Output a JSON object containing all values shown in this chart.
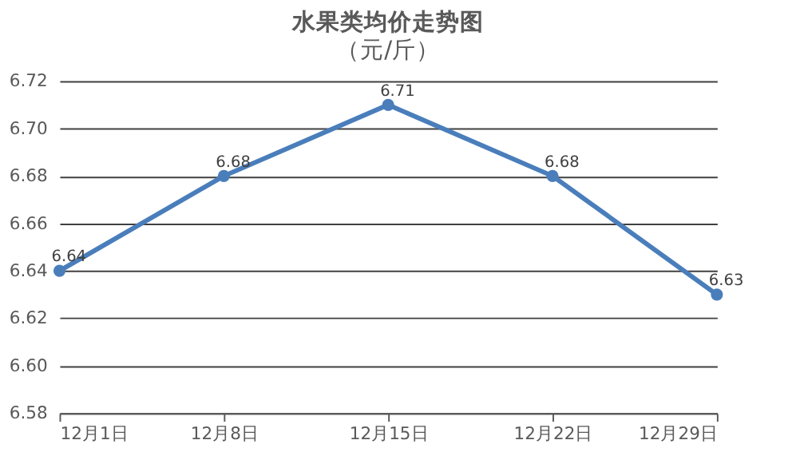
{
  "chart_data": {
    "type": "line",
    "title": "水果类均价走势图",
    "subtitle": "（元/斤）",
    "categories": [
      "12月1日",
      "12月8日",
      "12月15日",
      "12月22日",
      "12月29日"
    ],
    "values": [
      6.64,
      6.68,
      6.71,
      6.68,
      6.63
    ],
    "color": "#4a7ebb",
    "ylim": [
      6.58,
      6.72
    ],
    "yticks": [
      6.58,
      {
        "value": 6.6,
        "label": "6.60"
      },
      6.62,
      6.64,
      6.66,
      6.68,
      {
        "value": 6.7,
        "label": "6.70"
      },
      6.72
    ],
    "grid": "y",
    "marker": "circle",
    "line_style": "solid",
    "data_labels": true
  }
}
